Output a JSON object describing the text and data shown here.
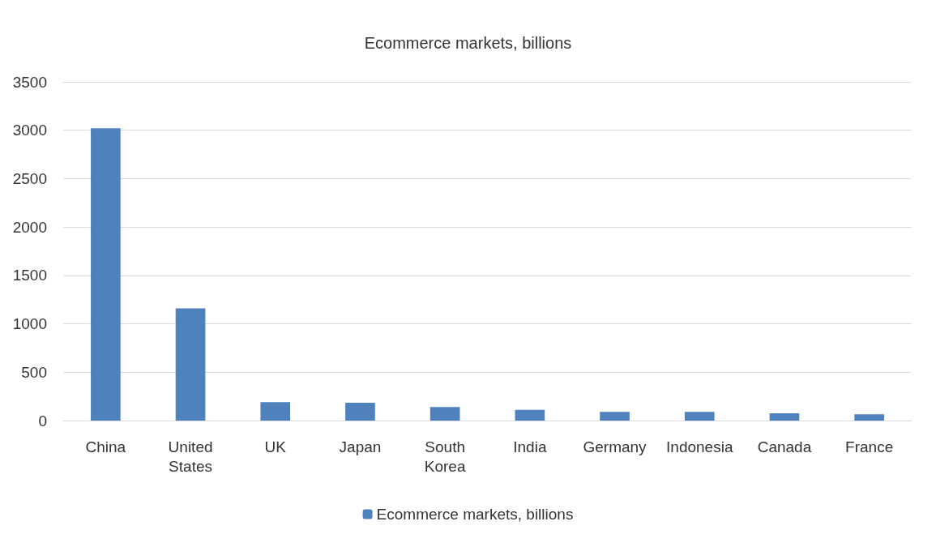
{
  "chart_data": {
    "type": "bar",
    "title": "Ecommerce markets, billions",
    "categories": [
      "China",
      "United States",
      "UK",
      "Japan",
      "South Korea",
      "India",
      "Germany",
      "Indonesia",
      "Canada",
      "France"
    ],
    "series": [
      {
        "name": "Ecommerce markets, billions",
        "color": "#4f81bd",
        "values": [
          3020,
          1160,
          190,
          185,
          140,
          110,
          90,
          90,
          75,
          65
        ]
      }
    ],
    "ylim": [
      0,
      3500
    ],
    "yticks": [
      0,
      500,
      1000,
      1500,
      2000,
      2500,
      3000,
      3500
    ],
    "grid": "y",
    "legend": "bottom"
  }
}
